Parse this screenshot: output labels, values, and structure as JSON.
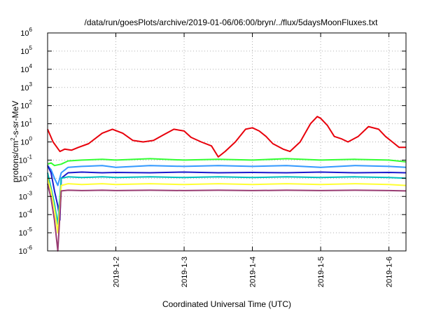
{
  "chart_data": {
    "type": "line",
    "title": "/data/run/goesPlots/archive/2019-01-06/06:00/bryn/../flux/5daysMoonFluxes.txt",
    "xlabel": "Coordinated Universal Time (UTC)",
    "ylabel": {
      "prefix": "protons/cm",
      "sup": "2",
      "suffix": "-s-sr-MeV"
    },
    "yscale": "log",
    "ylim": [
      1e-06,
      1000000.0
    ],
    "xlim": [
      0,
      5.25
    ],
    "x_unit": "days after 2019-01-01 00:00 UTC",
    "grid": true,
    "y_ticks": [
      {
        "base": "10",
        "exp": "-6",
        "value": -6
      },
      {
        "base": "10",
        "exp": "-5",
        "value": -5
      },
      {
        "base": "10",
        "exp": "-4",
        "value": -4
      },
      {
        "base": "10",
        "exp": "-3",
        "value": -3
      },
      {
        "base": "10",
        "exp": "-2",
        "value": -2
      },
      {
        "base": "10",
        "exp": "-1",
        "value": -1
      },
      {
        "base": "10",
        "exp": "0",
        "value": 0
      },
      {
        "base": "10",
        "exp": "1",
        "value": 1
      },
      {
        "base": "10",
        "exp": "2",
        "value": 2
      },
      {
        "base": "10",
        "exp": "3",
        "value": 3
      },
      {
        "base": "10",
        "exp": "4",
        "value": 4
      },
      {
        "base": "10",
        "exp": "5",
        "value": 5
      },
      {
        "base": "10",
        "exp": "6",
        "value": 6
      }
    ],
    "x_ticks": [
      {
        "label": "2019-1-2",
        "value": 1
      },
      {
        "label": "2019-1-3",
        "value": 2
      },
      {
        "label": "2019-1-4",
        "value": 3
      },
      {
        "label": "2019-1-5",
        "value": 4
      },
      {
        "label": "2019-1-6",
        "value": 5
      }
    ],
    "series": [
      {
        "color": "#e8000b",
        "x": [
          0,
          0.08,
          0.18,
          0.25,
          0.35,
          0.45,
          0.6,
          0.8,
          0.95,
          1.1,
          1.25,
          1.4,
          1.55,
          1.7,
          1.85,
          2.0,
          2.1,
          2.25,
          2.4,
          2.5,
          2.6,
          2.75,
          2.9,
          3.0,
          3.1,
          3.2,
          3.3,
          3.45,
          3.55,
          3.7,
          3.85,
          3.95,
          4.0,
          4.1,
          4.2,
          4.3,
          4.4,
          4.55,
          4.7,
          4.85,
          4.95,
          5.05,
          5.15,
          5.25
        ],
        "y": [
          5,
          1.0,
          0.3,
          0.4,
          0.35,
          0.5,
          0.8,
          3,
          5,
          3,
          1.2,
          1,
          1.2,
          2.5,
          5,
          4,
          1.8,
          1,
          0.6,
          0.15,
          0.3,
          1,
          5,
          6,
          4,
          2,
          0.8,
          0.4,
          0.3,
          1,
          10,
          25,
          20,
          8,
          2,
          1.5,
          1,
          2,
          7,
          5,
          2,
          1,
          0.5,
          0.5
        ]
      },
      {
        "color": "#33ff33",
        "x": [
          0,
          0.05,
          0.1,
          0.2,
          0.3,
          0.5,
          0.8,
          1.0,
          1.5,
          2.0,
          2.5,
          3.0,
          3.5,
          4.0,
          4.5,
          5.0,
          5.25
        ],
        "y": [
          0.06,
          0.07,
          0.05,
          0.06,
          0.09,
          0.1,
          0.11,
          0.1,
          0.12,
          0.1,
          0.11,
          0.1,
          0.12,
          0.1,
          0.11,
          0.1,
          0.08
        ]
      },
      {
        "color": "#3399ff",
        "x": [
          0,
          0.05,
          0.1,
          0.15,
          0.2,
          0.3,
          0.5,
          0.8,
          1.0,
          1.5,
          2.0,
          2.5,
          3.0,
          3.5,
          4.0,
          4.5,
          5.0,
          5.25
        ],
        "y": [
          0.05,
          0.03,
          0.01,
          0.004,
          0.02,
          0.04,
          0.045,
          0.05,
          0.04,
          0.05,
          0.045,
          0.05,
          0.045,
          0.05,
          0.04,
          0.05,
          0.045,
          0.04
        ]
      },
      {
        "color": "#1a1acc",
        "x": [
          0,
          0.05,
          0.1,
          0.15,
          0.18,
          0.2,
          0.3,
          0.5,
          0.8,
          1.0,
          1.5,
          2.0,
          2.5,
          3.0,
          3.5,
          4.0,
          4.5,
          5.0,
          5.25
        ],
        "y": [
          0.05,
          0.02,
          0.002,
          0.0003,
          5e-05,
          0.01,
          0.02,
          0.022,
          0.02,
          0.021,
          0.02,
          0.022,
          0.02,
          0.021,
          0.02,
          0.022,
          0.02,
          0.021,
          0.02
        ]
      },
      {
        "color": "#00bfbf",
        "x": [
          0,
          0.05,
          0.1,
          0.15,
          0.2,
          0.3,
          0.5,
          0.8,
          1.0,
          1.5,
          2.0,
          2.5,
          3.0,
          3.5,
          4.0,
          4.5,
          5.0,
          5.25
        ],
        "y": [
          0.02,
          0.003,
          0.0004,
          3e-05,
          0.01,
          0.012,
          0.011,
          0.012,
          0.011,
          0.012,
          0.011,
          0.012,
          0.011,
          0.012,
          0.011,
          0.012,
          0.011,
          0.01
        ]
      },
      {
        "color": "#ffff33",
        "x": [
          0,
          0.05,
          0.1,
          0.15,
          0.2,
          0.3,
          0.5,
          0.8,
          1.0,
          1.5,
          2.0,
          2.5,
          3.0,
          3.5,
          4.0,
          4.5,
          5.0,
          5.25
        ],
        "y": [
          0.01,
          0.002,
          0.0002,
          1e-05,
          0.004,
          0.005,
          0.0045,
          0.005,
          0.0045,
          0.005,
          0.0045,
          0.005,
          0.0045,
          0.005,
          0.0045,
          0.005,
          0.0045,
          0.004
        ]
      },
      {
        "color": "#993d73",
        "x": [
          0,
          0.05,
          0.1,
          0.15,
          0.2,
          0.3,
          0.5,
          0.8,
          1.0,
          1.5,
          2.0,
          2.5,
          3.0,
          3.5,
          4.0,
          4.5,
          5.0,
          5.25
        ],
        "y": [
          0.005,
          0.0008,
          5e-05,
          1e-06,
          0.002,
          0.0022,
          0.0021,
          0.0022,
          0.0021,
          0.0022,
          0.0021,
          0.0022,
          0.0021,
          0.0022,
          0.0021,
          0.0022,
          0.0021,
          0.002
        ]
      }
    ]
  }
}
